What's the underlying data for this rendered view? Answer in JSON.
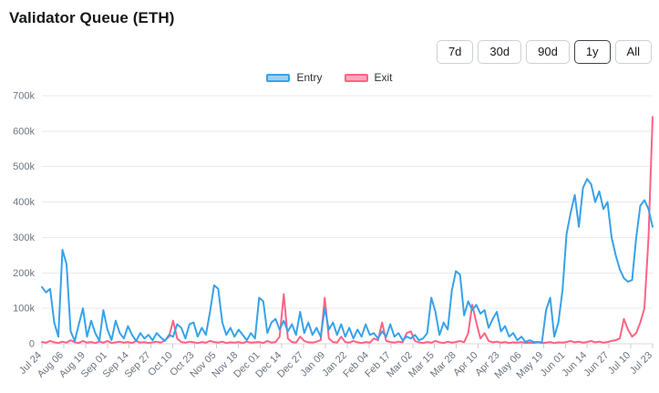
{
  "title": "Validator Queue (ETH)",
  "time_ranges": {
    "options": [
      "7d",
      "30d",
      "90d",
      "1y",
      "All"
    ],
    "selected": "1y"
  },
  "legend": [
    {
      "label": "Entry",
      "color": "#36a2eb",
      "fill": "#9ed0f3"
    },
    {
      "label": "Exit",
      "color": "#ff6384",
      "fill": "#ffa9bc"
    }
  ],
  "chart_data": {
    "type": "line",
    "title": "Validator Queue (ETH)",
    "xlabel": "",
    "ylabel": "",
    "ylim": [
      0,
      700000
    ],
    "grid": "horizontal",
    "legend_position": "top",
    "y_tick_labels": [
      "0",
      "100k",
      "200k",
      "300k",
      "400k",
      "500k",
      "600k",
      "700k"
    ],
    "x_tick_labels": [
      "Jul 24",
      "Aug 06",
      "Aug 19",
      "Sep 01",
      "Sep 14",
      "Sep 27",
      "Oct 10",
      "Oct 23",
      "Nov 05",
      "Nov 18",
      "Dec 01",
      "Dec 14",
      "Dec 27",
      "Jan 09",
      "Jan 22",
      "Feb 04",
      "Feb 17",
      "Mar 02",
      "Mar 15",
      "Mar 28",
      "Apr 10",
      "Apr 23",
      "May 06",
      "May 19",
      "Jun 01",
      "Jun 14",
      "Jun 27",
      "Jul 10",
      "Jul 23"
    ],
    "series": [
      {
        "name": "Entry",
        "color": "#36a2eb",
        "values_thousands": [
          160,
          145,
          155,
          60,
          20,
          265,
          225,
          35,
          8,
          55,
          100,
          20,
          65,
          30,
          8,
          95,
          40,
          10,
          65,
          30,
          15,
          50,
          25,
          8,
          30,
          15,
          25,
          10,
          30,
          18,
          8,
          25,
          20,
          55,
          45,
          15,
          55,
          60,
          20,
          45,
          25,
          90,
          165,
          155,
          60,
          25,
          45,
          20,
          40,
          25,
          10,
          30,
          15,
          130,
          120,
          30,
          60,
          70,
          40,
          65,
          35,
          55,
          25,
          90,
          30,
          60,
          25,
          45,
          20,
          100,
          40,
          60,
          25,
          55,
          20,
          45,
          15,
          40,
          20,
          55,
          25,
          30,
          15,
          35,
          20,
          55,
          20,
          30,
          10,
          20,
          15,
          25,
          10,
          15,
          30,
          130,
          90,
          25,
          60,
          40,
          150,
          205,
          195,
          80,
          120,
          95,
          110,
          85,
          95,
          45,
          70,
          90,
          35,
          50,
          20,
          30,
          10,
          20,
          5,
          10,
          5,
          5,
          5,
          95,
          130,
          20,
          60,
          150,
          310,
          370,
          420,
          330,
          440,
          465,
          450,
          400,
          430,
          380,
          400,
          300,
          250,
          210,
          185,
          175,
          180,
          300,
          390,
          405,
          380,
          330
        ]
      },
      {
        "name": "Exit",
        "color": "#ff6384",
        "values_thousands": [
          5,
          3,
          8,
          4,
          2,
          6,
          3,
          10,
          4,
          2,
          8,
          3,
          5,
          2,
          6,
          3,
          8,
          2,
          4,
          6,
          3,
          5,
          2,
          8,
          3,
          5,
          2,
          4,
          6,
          3,
          10,
          20,
          65,
          15,
          5,
          3,
          6,
          4,
          2,
          5,
          3,
          8,
          5,
          3,
          6,
          2,
          4,
          3,
          5,
          2,
          6,
          3,
          4,
          5,
          2,
          8,
          3,
          5,
          20,
          140,
          15,
          5,
          3,
          20,
          8,
          4,
          3,
          6,
          10,
          130,
          15,
          5,
          3,
          20,
          5,
          3,
          8,
          4,
          2,
          5,
          3,
          15,
          10,
          60,
          8,
          5,
          3,
          6,
          4,
          30,
          35,
          8,
          4,
          2,
          5,
          3,
          8,
          4,
          2,
          6,
          3,
          5,
          8,
          4,
          30,
          110,
          60,
          15,
          30,
          8,
          4,
          6,
          3,
          5,
          2,
          4,
          3,
          5,
          2,
          3,
          2,
          4,
          2,
          3,
          5,
          2,
          4,
          3,
          5,
          8,
          4,
          6,
          3,
          5,
          8,
          4,
          6,
          3,
          5,
          8,
          10,
          15,
          70,
          40,
          20,
          30,
          60,
          100,
          300,
          640
        ]
      }
    ]
  }
}
